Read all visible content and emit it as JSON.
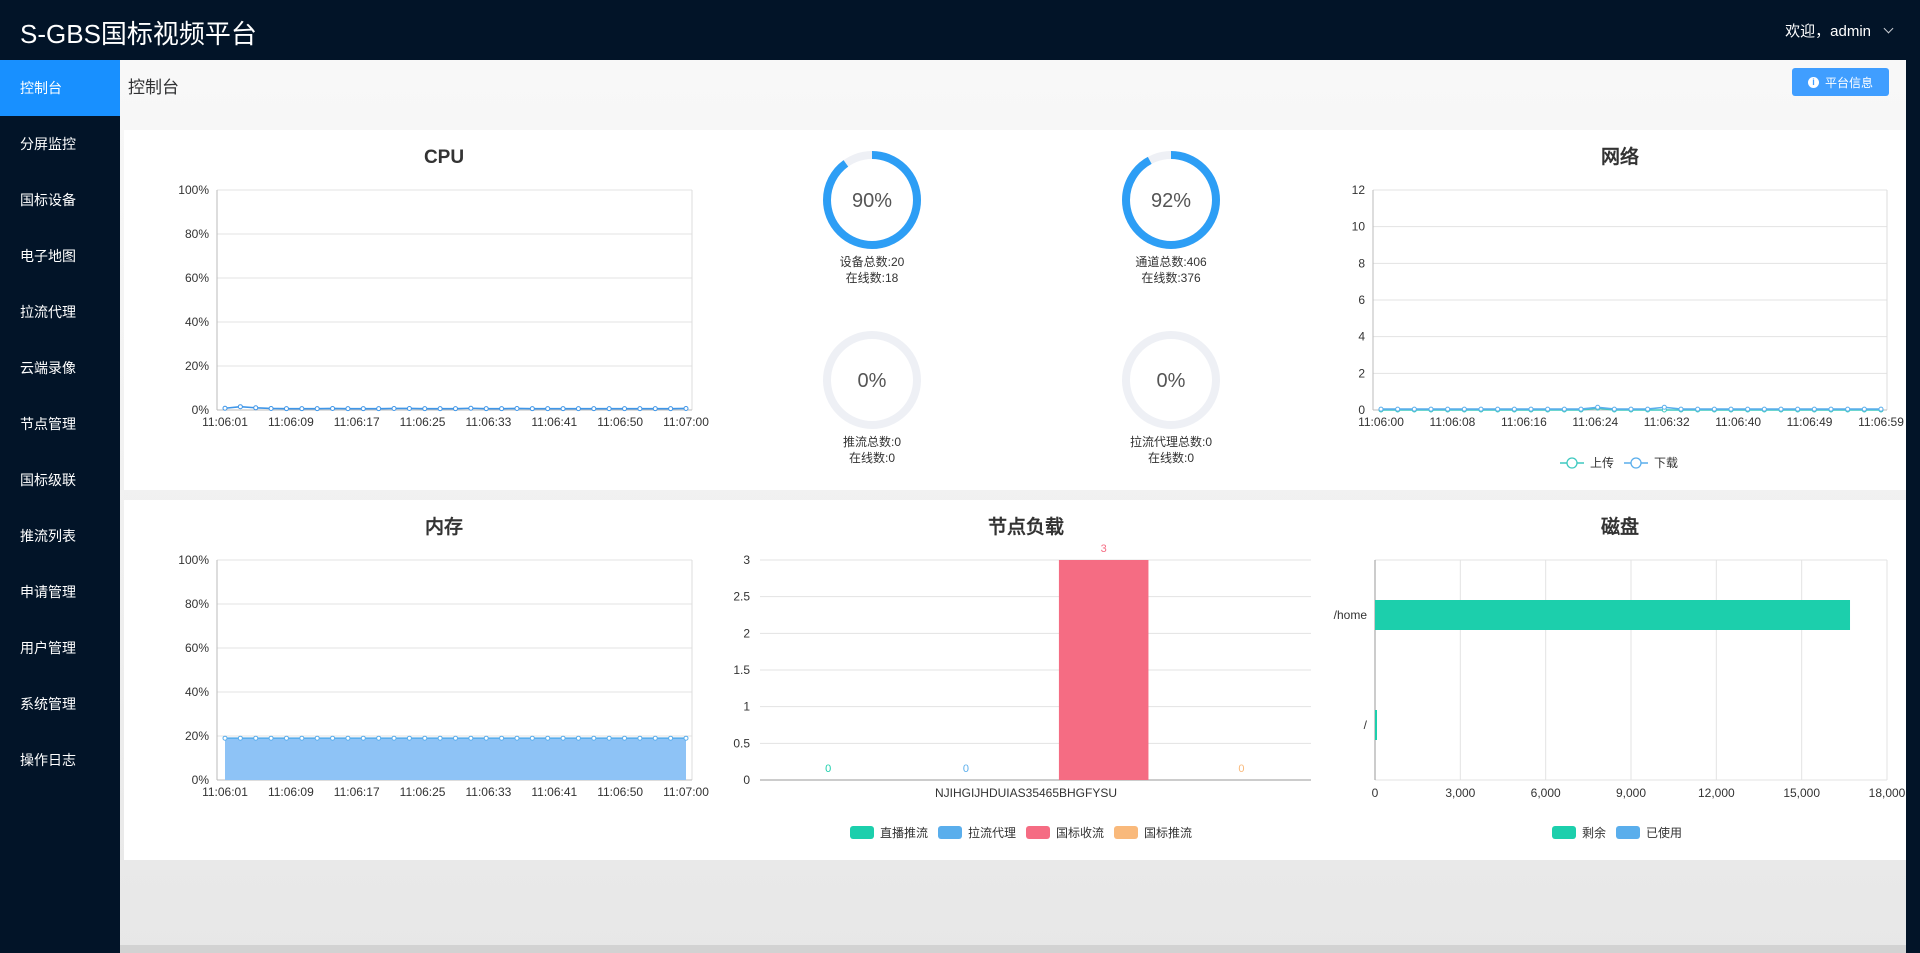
{
  "header": {
    "title": "S-GBS国标视频平台",
    "user_greeting": "欢迎，admin"
  },
  "sidebar": {
    "items": [
      {
        "label": "控制台",
        "active": true
      },
      {
        "label": "分屏监控"
      },
      {
        "label": "国标设备"
      },
      {
        "label": "电子地图"
      },
      {
        "label": "拉流代理"
      },
      {
        "label": "云端录像"
      },
      {
        "label": "节点管理"
      },
      {
        "label": "国标级联"
      },
      {
        "label": "推流列表"
      },
      {
        "label": "申请管理"
      },
      {
        "label": "用户管理"
      },
      {
        "label": "系统管理"
      },
      {
        "label": "操作日志"
      }
    ]
  },
  "page": {
    "title": "控制台",
    "info_button": "平台信息"
  },
  "colors": {
    "accent": "#1890ff",
    "nav_bg": "#021428",
    "gauge_fill": "#2d9ef5",
    "gauge_track": "#eef0f5",
    "area_fill": "#8ec3f6",
    "pink": "#f56c83",
    "teal": "#1ccfac",
    "orange": "#f9b97b",
    "blue": "#5aaeec"
  },
  "gauges": [
    {
      "value": "90%",
      "line1": "设备总数:20",
      "line2": "在线数:18",
      "fraction": 0.9
    },
    {
      "value": "92%",
      "line1": "通道总数:406",
      "line2": "在线数:376",
      "fraction": 0.92
    },
    {
      "value": "0%",
      "line1": "推流总数:0",
      "line2": "在线数:0",
      "fraction": 0
    },
    {
      "value": "0%",
      "line1": "拉流代理总数:0",
      "line2": "在线数:0",
      "fraction": 0
    }
  ],
  "chart_data": [
    {
      "id": "cpu",
      "type": "line",
      "title": "CPU",
      "y_ticks": [
        "0%",
        "20%",
        "40%",
        "60%",
        "80%",
        "100%"
      ],
      "ylim": [
        0,
        100
      ],
      "x_ticks": [
        "11:06:01",
        "11:06:09",
        "11:06:17",
        "11:06:25",
        "11:06:33",
        "11:06:41",
        "11:06:50",
        "11:07:00"
      ],
      "values": [
        0.8,
        1.5,
        1.0,
        0.7,
        0.6,
        0.6,
        0.6,
        0.7,
        0.6,
        0.6,
        0.6,
        0.7,
        0.7,
        0.6,
        0.6,
        0.6,
        0.8,
        0.6,
        0.6,
        0.7,
        0.6,
        0.6,
        0.6,
        0.6,
        0.6,
        0.6,
        0.6,
        0.6,
        0.6,
        0.6,
        0.7
      ],
      "grid": true
    },
    {
      "id": "network",
      "type": "line",
      "title": "网络",
      "y_ticks": [
        "0",
        "2",
        "4",
        "6",
        "8",
        "10",
        "12"
      ],
      "ylim": [
        0,
        12
      ],
      "x_ticks": [
        "11:06:00",
        "11:06:08",
        "11:06:16",
        "11:06:24",
        "11:06:32",
        "11:06:40",
        "11:06:49",
        "11:06:59"
      ],
      "series": [
        {
          "name": "上传",
          "values": [
            0,
            0,
            0,
            0,
            0,
            0,
            0,
            0,
            0,
            0,
            0,
            0,
            0,
            0.1,
            0,
            0,
            0,
            0,
            0,
            0,
            0,
            0,
            0,
            0,
            0,
            0,
            0,
            0,
            0,
            0,
            0
          ]
        },
        {
          "name": "下载",
          "values": [
            0.05,
            0.05,
            0.05,
            0.05,
            0.05,
            0.05,
            0.05,
            0.05,
            0.05,
            0.05,
            0.05,
            0.05,
            0.05,
            0.15,
            0.05,
            0.05,
            0.05,
            0.15,
            0.05,
            0.05,
            0.05,
            0.05,
            0.05,
            0.05,
            0.05,
            0.05,
            0.05,
            0.05,
            0.05,
            0.05,
            0.05
          ]
        }
      ],
      "legend": "bottom",
      "grid": true
    },
    {
      "id": "memory",
      "type": "area",
      "title": "内存",
      "y_ticks": [
        "0%",
        "20%",
        "40%",
        "60%",
        "80%",
        "100%"
      ],
      "ylim": [
        0,
        100
      ],
      "x_ticks": [
        "11:06:01",
        "11:06:09",
        "11:06:17",
        "11:06:25",
        "11:06:33",
        "11:06:41",
        "11:06:50",
        "11:07:00"
      ],
      "values": [
        19,
        19,
        19,
        19,
        19,
        19,
        19,
        19,
        19,
        19,
        19,
        19,
        19,
        19,
        19,
        19,
        19,
        19,
        19,
        19,
        19,
        19,
        19,
        19,
        19,
        19,
        19,
        19,
        19,
        19,
        19
      ],
      "grid": true
    },
    {
      "id": "node-load",
      "type": "bar",
      "title": "节点负载",
      "categories": [
        "NJIHGIJHDUIAS35465BHGFYSU"
      ],
      "y_ticks": [
        "0",
        "0.5",
        "1",
        "1.5",
        "2",
        "2.5",
        "3"
      ],
      "ylim": [
        0,
        3
      ],
      "series": [
        {
          "name": "直播推流",
          "values": [
            0
          ],
          "label": "0"
        },
        {
          "name": "拉流代理",
          "values": [
            0
          ],
          "label": "0"
        },
        {
          "name": "国标收流",
          "values": [
            3
          ],
          "label": "3"
        },
        {
          "name": "国标推流",
          "values": [
            0
          ],
          "label": "0"
        }
      ],
      "legend": "bottom",
      "grid": true
    },
    {
      "id": "disk",
      "type": "bar",
      "orientation": "horizontal",
      "title": "磁盘",
      "categories": [
        "/home",
        "/"
      ],
      "x_ticks": [
        "0",
        "3,000",
        "6,000",
        "9,000",
        "12,000",
        "15,000",
        "18,000"
      ],
      "xlim": [
        0,
        18000
      ],
      "series": [
        {
          "name": "剩余",
          "values": [
            16700,
            60
          ]
        },
        {
          "name": "已使用",
          "values": [
            0,
            0
          ]
        }
      ],
      "legend": "bottom",
      "grid": true
    }
  ]
}
